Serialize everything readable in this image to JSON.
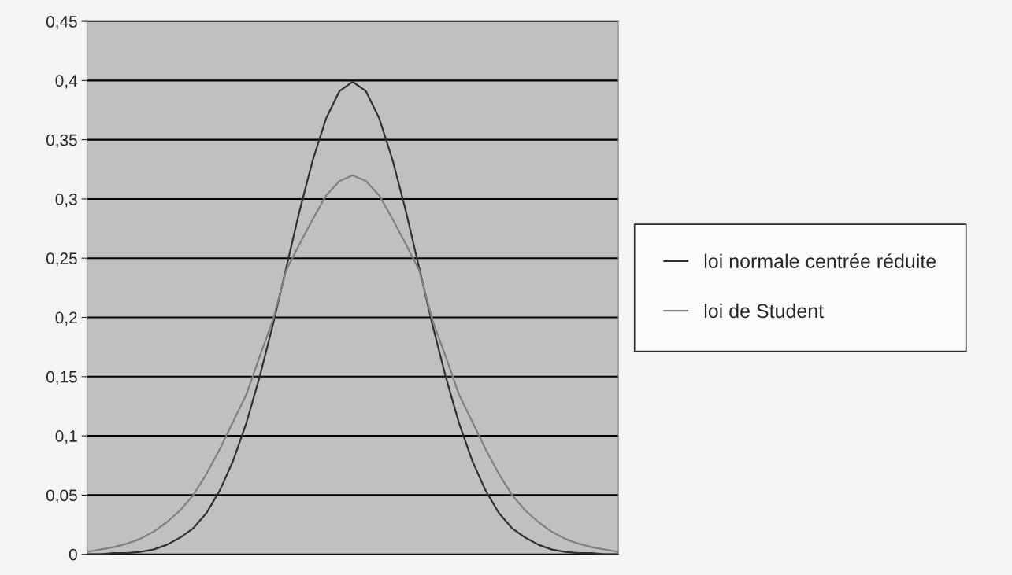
{
  "chart_data": {
    "type": "line",
    "categories": [
      null,
      null,
      null,
      null,
      null,
      null,
      null,
      null,
      null,
      null,
      null,
      null,
      null,
      null,
      null,
      null,
      null,
      null,
      null,
      null,
      null,
      null,
      null,
      null,
      null,
      null,
      null,
      null,
      null,
      null,
      null,
      null,
      null,
      null,
      null,
      null,
      null,
      null,
      null,
      null,
      null
    ],
    "series": [
      {
        "name": "loi normale centrée réduite",
        "color": "#303030",
        "values": [
          0,
          0,
          0.001,
          0.001,
          0.002,
          0.004,
          0.008,
          0.014,
          0.022,
          0.035,
          0.054,
          0.079,
          0.111,
          0.15,
          0.194,
          0.242,
          0.29,
          0.333,
          0.368,
          0.391,
          0.399,
          0.391,
          0.368,
          0.333,
          0.29,
          0.242,
          0.194,
          0.15,
          0.111,
          0.079,
          0.054,
          0.035,
          0.022,
          0.014,
          0.008,
          0.004,
          0.002,
          0.001,
          0.001,
          0,
          0
        ]
      },
      {
        "name": "loi de Student",
        "color": "#808080",
        "values": [
          0.002,
          0.004,
          0.006,
          0.009,
          0.013,
          0.019,
          0.027,
          0.037,
          0.05,
          0.068,
          0.089,
          0.112,
          0.135,
          0.167,
          0.198,
          0.24,
          0.262,
          0.283,
          0.303,
          0.315,
          0.32,
          0.315,
          0.303,
          0.283,
          0.262,
          0.24,
          0.198,
          0.167,
          0.135,
          0.112,
          0.089,
          0.068,
          0.05,
          0.037,
          0.027,
          0.019,
          0.013,
          0.009,
          0.006,
          0.004,
          0.002
        ]
      }
    ],
    "ylim": [
      0,
      0.45
    ],
    "yticks": [
      0,
      {
        "value": 0.05,
        "label": "0,05"
      },
      {
        "value": 0.1,
        "label": "0,1"
      },
      {
        "value": 0.15,
        "label": "0,15"
      },
      {
        "value": 0.2,
        "label": "0,2"
      },
      {
        "value": 0.25,
        "label": "0,25"
      },
      {
        "value": 0.3,
        "label": "0,3"
      },
      {
        "value": 0.35,
        "label": "0,35"
      },
      {
        "value": 0.4,
        "label": "0,4"
      },
      {
        "value": 0.45,
        "label": "0,45"
      }
    ],
    "grid": "y",
    "legend": "right"
  }
}
